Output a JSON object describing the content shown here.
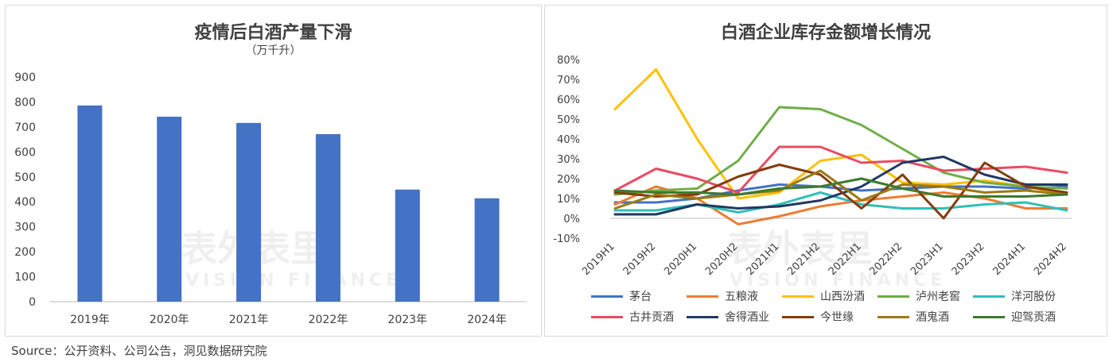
{
  "chart_data": [
    {
      "type": "bar",
      "title": "疫情后白酒产量下滑",
      "subtitle": "（万千升）",
      "categories": [
        "2019年",
        "2020年",
        "2021年",
        "2022年",
        "2023年",
        "2024年"
      ],
      "values": [
        786,
        741,
        716,
        671,
        449,
        414
      ],
      "ylim": [
        0,
        900
      ],
      "yticks": [
        "0",
        "100",
        "200",
        "300",
        "400",
        "500",
        "600",
        "700",
        "800",
        "900"
      ],
      "bar_color": "#4472C4",
      "grid": false
    },
    {
      "type": "line",
      "title": "白酒企业库存金额增长情况",
      "categories": [
        "2019H1",
        "2019H2",
        "2020H1",
        "2020H2",
        "2021H1",
        "2021H2",
        "2022H1",
        "2022H2",
        "2023H1",
        "2023H2",
        "2024H1",
        "2024H2"
      ],
      "ylim": [
        -10,
        80
      ],
      "yticks": [
        "-10%",
        "0%",
        "10%",
        "20%",
        "30%",
        "40%",
        "50%",
        "60%",
        "70%",
        "80%"
      ],
      "grid": false,
      "legend_position": "bottom",
      "series": [
        {
          "name": "茅台",
          "color": "#4472C4",
          "values": [
            8,
            8,
            10,
            14,
            17,
            16,
            14,
            15,
            16,
            16,
            15,
            16
          ]
        },
        {
          "name": "五粮液",
          "color": "#ED7D31",
          "values": [
            7,
            16,
            10,
            -3,
            1,
            6,
            9,
            11,
            13,
            10,
            5,
            5
          ]
        },
        {
          "name": "山西汾酒",
          "color": "#FFC000",
          "values": [
            55,
            75,
            40,
            10,
            13,
            29,
            32,
            18,
            17,
            19,
            16,
            12
          ]
        },
        {
          "name": "泸州老窖",
          "color": "#70AD47",
          "values": [
            12,
            14,
            15,
            29,
            56,
            55,
            47,
            35,
            23,
            18,
            16,
            15
          ]
        },
        {
          "name": "洋河股份",
          "color": "#2FC0B8",
          "values": [
            4,
            4,
            7,
            3,
            7,
            13,
            7,
            5,
            5,
            7,
            8,
            4
          ]
        },
        {
          "name": "古井贡酒",
          "color": "#E84C63",
          "values": [
            14,
            25,
            20,
            13,
            36,
            36,
            28,
            29,
            24,
            25,
            26,
            23
          ]
        },
        {
          "name": "舍得酒业",
          "color": "#203864",
          "values": [
            2,
            2,
            7,
            5,
            6,
            9,
            16,
            28,
            31,
            22,
            17,
            17
          ]
        },
        {
          "name": "今世缘",
          "color": "#843C0C",
          "values": [
            13,
            11,
            12,
            21,
            27,
            22,
            5,
            22,
            0,
            28,
            16,
            13
          ]
        },
        {
          "name": "酒鬼酒",
          "color": "#9C7A10",
          "values": [
            5,
            12,
            10,
            12,
            14,
            24,
            9,
            17,
            16,
            13,
            14,
            12
          ]
        },
        {
          "name": "迎驾贡酒",
          "color": "#3D7A2C",
          "values": [
            14,
            13,
            13,
            12,
            15,
            16,
            20,
            15,
            11,
            11,
            11,
            12
          ]
        }
      ]
    }
  ],
  "watermark": {
    "cn": "表外表里",
    "en": "VISION FINANCE"
  },
  "source": "Source：公开资料、公司公告，洞见数据研究院"
}
